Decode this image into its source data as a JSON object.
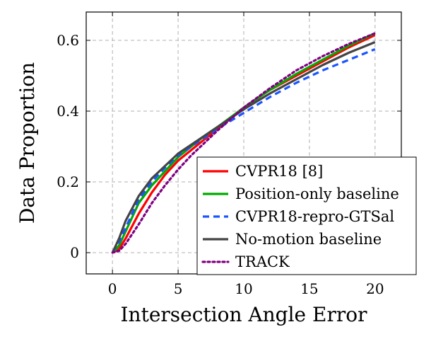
{
  "chart_data": {
    "type": "line",
    "xlabel": "Intersection Angle Error",
    "ylabel": "Data Proportion",
    "xlim": [
      -2,
      22
    ],
    "ylim": [
      -0.06,
      0.68
    ],
    "xticks": [
      0,
      5,
      10,
      15,
      20
    ],
    "yticks": [
      0,
      0.2,
      0.4,
      0.6
    ],
    "xtick_labels": [
      "0",
      "5",
      "10",
      "15",
      "20"
    ],
    "ytick_labels": [
      "0",
      "0.2",
      "0.4",
      "0.6"
    ],
    "grid": true,
    "legend_position": "bottom-right",
    "series": [
      {
        "name": "CVPR18 [8]",
        "color": "#ff0000",
        "style": "solid",
        "x": [
          0,
          0.5,
          1,
          2,
          3,
          4,
          5,
          6,
          7,
          8,
          10,
          12,
          14,
          16,
          18,
          20
        ],
        "y": [
          0,
          0.01,
          0.04,
          0.11,
          0.17,
          0.22,
          0.26,
          0.29,
          0.32,
          0.35,
          0.41,
          0.46,
          0.5,
          0.54,
          0.58,
          0.615
        ]
      },
      {
        "name": "Position-only baseline",
        "color": "#00aa00",
        "style": "solid",
        "x": [
          0,
          0.5,
          1,
          2,
          3,
          4,
          5,
          6,
          7,
          8,
          10,
          12,
          14,
          16,
          18,
          20
        ],
        "y": [
          0,
          0.02,
          0.06,
          0.14,
          0.19,
          0.23,
          0.27,
          0.3,
          0.33,
          0.355,
          0.41,
          0.46,
          0.505,
          0.545,
          0.585,
          0.62
        ]
      },
      {
        "name": "CVPR18-repro-GTSal",
        "color": "#1a55ff",
        "style": "dashed",
        "x": [
          0,
          0.5,
          1,
          2,
          3,
          4,
          5,
          6,
          7,
          8,
          10,
          12,
          14,
          16,
          18,
          20
        ],
        "y": [
          0,
          0.03,
          0.07,
          0.15,
          0.2,
          0.24,
          0.275,
          0.3,
          0.325,
          0.35,
          0.395,
          0.44,
          0.48,
          0.515,
          0.545,
          0.575
        ]
      },
      {
        "name": "No-motion baseline",
        "color": "#444444",
        "style": "solid",
        "x": [
          0,
          0.5,
          1,
          2,
          3,
          4,
          5,
          6,
          7,
          8,
          10,
          12,
          14,
          16,
          18,
          20
        ],
        "y": [
          0,
          0.04,
          0.09,
          0.16,
          0.21,
          0.245,
          0.28,
          0.305,
          0.33,
          0.355,
          0.405,
          0.45,
          0.49,
          0.53,
          0.565,
          0.595
        ]
      },
      {
        "name": "TRACK",
        "color": "#800080",
        "style": "dotted",
        "x": [
          0,
          0.5,
          1,
          2,
          3,
          4,
          5,
          6,
          7,
          8,
          10,
          12,
          14,
          16,
          18,
          20
        ],
        "y": [
          0,
          0.005,
          0.025,
          0.08,
          0.14,
          0.19,
          0.235,
          0.275,
          0.31,
          0.345,
          0.41,
          0.465,
          0.515,
          0.555,
          0.59,
          0.62
        ]
      }
    ]
  }
}
